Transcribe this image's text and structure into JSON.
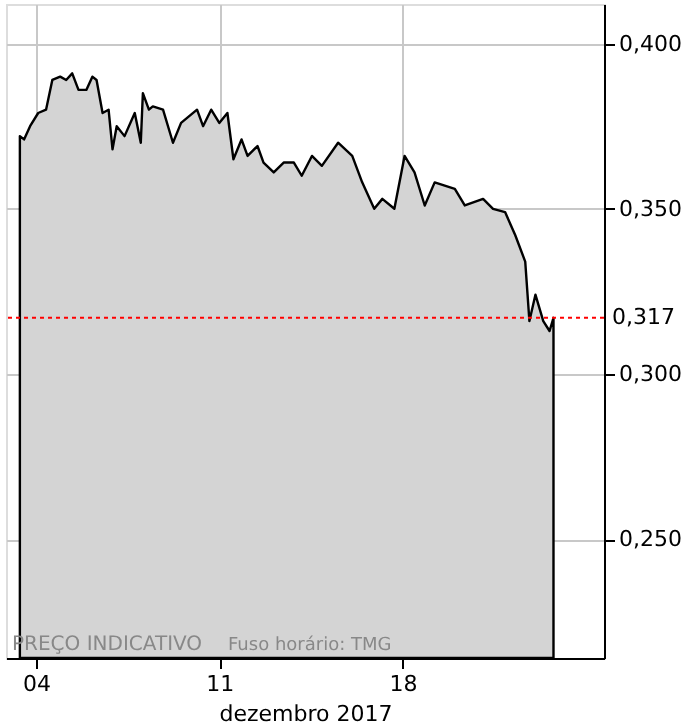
{
  "chart_data": {
    "type": "area",
    "xlabel": "dezembro 2017",
    "x": [
      3.38,
      3.54,
      3.77,
      4.08,
      4.38,
      4.62,
      4.92,
      5.15,
      5.38,
      5.62,
      5.92,
      6.15,
      6.31,
      6.54,
      6.77,
      6.92,
      7.08,
      7.38,
      7.77,
      8.0,
      8.08,
      8.31,
      8.46,
      8.85,
      9.23,
      9.54,
      10.15,
      10.38,
      10.69,
      11.0,
      11.31,
      11.54,
      11.85,
      12.08,
      12.46,
      12.69,
      13.08,
      13.46,
      13.85,
      14.15,
      14.54,
      14.92,
      15.54,
      16.08,
      16.46,
      16.92,
      17.23,
      17.69,
      18.08,
      18.46,
      18.85,
      19.23,
      20.0,
      20.38,
      21.08,
      21.46,
      21.92,
      22.31,
      22.69,
      22.85,
      23.08,
      23.38,
      23.62,
      23.77
    ],
    "series": [
      {
        "color": "#d4d4d4",
        "values": [
          0.372,
          0.371,
          0.375,
          0.379,
          0.38,
          0.389,
          0.39,
          0.389,
          0.391,
          0.386,
          0.386,
          0.39,
          0.389,
          0.379,
          0.38,
          0.368,
          0.375,
          0.372,
          0.379,
          0.37,
          0.385,
          0.38,
          0.381,
          0.38,
          0.37,
          0.376,
          0.38,
          0.375,
          0.38,
          0.376,
          0.379,
          0.365,
          0.371,
          0.366,
          0.369,
          0.364,
          0.361,
          0.364,
          0.364,
          0.36,
          0.366,
          0.363,
          0.37,
          0.366,
          0.358,
          0.35,
          0.353,
          0.35,
          0.366,
          0.361,
          0.351,
          0.358,
          0.356,
          0.351,
          0.353,
          0.35,
          0.349,
          0.342,
          0.334,
          0.316,
          0.324,
          0.316,
          0.313,
          0.317
        ]
      }
    ],
    "xlim": [
      2.85,
      25.7
    ],
    "xticks": [
      {
        "value": 4,
        "label": "04"
      },
      {
        "value": 11,
        "label": "11"
      },
      {
        "value": 18,
        "label": "18"
      }
    ],
    "ylim": [
      0.214,
      0.412
    ],
    "yticks": [
      {
        "value": 0.25,
        "label": "0,250"
      },
      {
        "value": 0.3,
        "label": "0,300"
      },
      {
        "value": 0.35,
        "label": "0,350"
      },
      {
        "value": 0.4,
        "label": "0,400"
      }
    ],
    "grid": true,
    "ref_lines": [
      {
        "axis": "y",
        "value": 0.317,
        "label": "0,317",
        "color": "#ff0000",
        "line_style": "dotted"
      }
    ],
    "annotations": [
      "PREÇO INDICATIVO",
      "Fuso horário: TMG"
    ]
  }
}
